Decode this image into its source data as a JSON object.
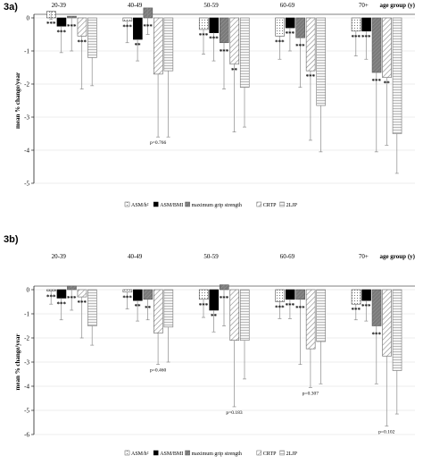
{
  "chart_data": [
    {
      "type": "bar",
      "panel_label": "3a)",
      "ylabel": "mean % change/year",
      "xlabel": "age group (y)",
      "ylim": [
        -5,
        0
      ],
      "yticks": [
        0,
        -1,
        -2,
        -3,
        -4,
        -5
      ],
      "categories": [
        "20-39",
        "40-49",
        "50-59",
        "60-69",
        "70+"
      ],
      "series": [
        {
          "name": "ASM/h²",
          "values": [
            0.2,
            -0.1,
            -0.35,
            -0.55,
            -0.4
          ],
          "errors": [
            0.25,
            0.65,
            0.75,
            0.7,
            0.75
          ],
          "annotations": [
            "***",
            "***",
            "***",
            "***",
            "***"
          ]
        },
        {
          "name": "ASM/BMI",
          "values": [
            -0.25,
            -0.65,
            -0.45,
            -0.3,
            -0.4
          ],
          "errors": [
            0.8,
            0.65,
            0.85,
            0.7,
            0.85
          ],
          "annotations": [
            "***",
            "**",
            "***",
            "***",
            "***"
          ]
        },
        {
          "name": "maximum grip strength",
          "values": [
            0.05,
            0.3,
            -0.75,
            -0.6,
            -1.65
          ],
          "errors": [
            1.05,
            0.8,
            1.4,
            1.5,
            2.4
          ],
          "annotations": [
            "***",
            "***",
            "***",
            "***",
            "***"
          ]
        },
        {
          "name": "CRTP",
          "values": [
            -0.55,
            -1.7,
            -1.4,
            -1.6,
            -1.8
          ],
          "errors": [
            1.6,
            1.9,
            2.05,
            2.1,
            2.05
          ],
          "annotations": [
            "***",
            "p=0.766",
            "**",
            "***",
            "**"
          ]
        },
        {
          "name": "2LJP",
          "values": [
            -1.2,
            -1.6,
            -2.1,
            -2.65,
            -3.5
          ],
          "errors": [
            0.85,
            2.0,
            1.2,
            1.4,
            1.2
          ],
          "annotations": [
            "",
            "",
            "",
            "",
            ""
          ]
        }
      ]
    },
    {
      "type": "bar",
      "panel_label": "3b)",
      "ylabel": "mean % change/year",
      "xlabel": "age group (y)",
      "ylim": [
        -6,
        0
      ],
      "yticks": [
        0,
        -1,
        -2,
        -3,
        -4,
        -5,
        -6
      ],
      "categories": [
        "20-39",
        "40-49",
        "50-59",
        "60-69",
        "70+"
      ],
      "series": [
        {
          "name": "ASM/h²",
          "values": [
            -0.05,
            -0.1,
            -0.4,
            -0.5,
            -0.6
          ],
          "errors": [
            0.55,
            0.7,
            0.75,
            0.7,
            0.65
          ],
          "annotations": [
            "***",
            "***",
            "***",
            "***",
            "***"
          ]
        },
        {
          "name": "ASM/BMI",
          "values": [
            -0.35,
            -0.45,
            -0.85,
            -0.4,
            -0.45
          ],
          "errors": [
            0.9,
            0.85,
            0.9,
            0.8,
            0.85
          ],
          "annotations": [
            "***",
            "**",
            "**",
            "***",
            "***"
          ]
        },
        {
          "name": "maximum grip strength",
          "values": [
            0.15,
            -0.4,
            0.2,
            -0.4,
            -1.5
          ],
          "errors": [
            1.0,
            0.85,
            1.7,
            2.7,
            2.4
          ],
          "annotations": [
            "***",
            "**",
            "***",
            "***",
            "***"
          ]
        },
        {
          "name": "CRTP",
          "values": [
            -0.3,
            -1.8,
            -2.1,
            -2.45,
            -2.75
          ],
          "errors": [
            1.7,
            1.3,
            2.75,
            1.6,
            2.9
          ],
          "annotations": [
            "***",
            "p=0.460",
            "p=0.183",
            "p=0.307",
            "p=0.102"
          ]
        },
        {
          "name": "2LJP",
          "values": [
            -1.5,
            -1.55,
            -2.1,
            -2.15,
            -3.35
          ],
          "errors": [
            0.8,
            1.45,
            1.6,
            1.75,
            1.8
          ],
          "annotations": [
            "",
            "",
            "",
            "",
            ""
          ]
        }
      ]
    }
  ],
  "colors": {
    "axis": "#000000",
    "grid": "#d9d9d9",
    "error": "#8c8c8c"
  }
}
